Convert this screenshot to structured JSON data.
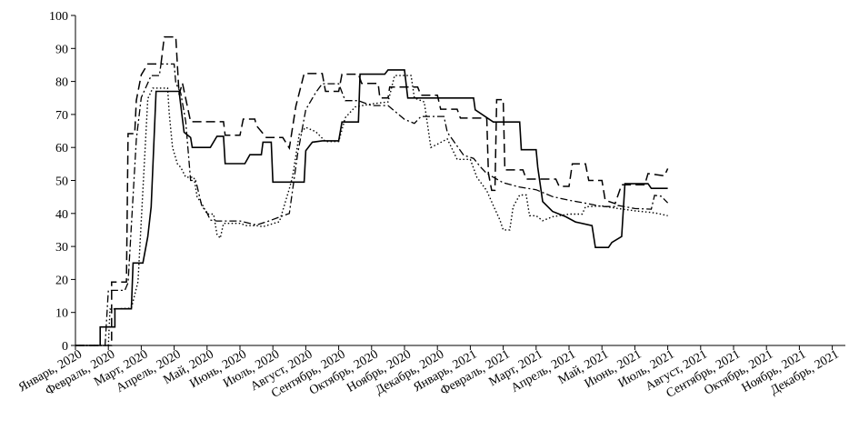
{
  "chart_data": {
    "type": "line",
    "title": "",
    "xlabel": "",
    "ylabel": "",
    "ylim": [
      0,
      100
    ],
    "yticks": [
      0,
      10,
      20,
      30,
      40,
      50,
      60,
      70,
      80,
      90,
      100
    ],
    "grid": false,
    "legend": "none",
    "x_categories": [
      "Январь, 2020",
      "Февраль, 2020",
      "Март, 2020",
      "Апрель, 2020",
      "Май, 2020",
      "Июнь, 2020",
      "Июль, 2020",
      "Август, 2020",
      "Сентябрь, 2020",
      "Октябрь, 2020",
      "Ноябрь, 2020",
      "Декабрь, 2020",
      "Январь, 2021",
      "Февраль, 2021",
      "Март, 2021",
      "Апрель, 2021",
      "Май, 2021",
      "Июнь, 2021",
      "Июль, 2021",
      "Август, 2021",
      "Сентябрь, 2021",
      "Октябрь, 2021",
      "Ноябрь, 2021",
      "Декабрь, 2021"
    ],
    "series": [
      {
        "style": "solid",
        "points": [
          [
            0,
            0
          ],
          [
            0.75,
            0
          ],
          [
            0.75,
            5.6
          ],
          [
            1.2,
            5.6
          ],
          [
            1.2,
            11.1
          ],
          [
            1.7,
            11.1
          ],
          [
            1.75,
            25
          ],
          [
            2.05,
            25
          ],
          [
            2.2,
            33
          ],
          [
            2.3,
            42
          ],
          [
            2.45,
            77
          ],
          [
            3.15,
            77
          ],
          [
            3.3,
            64.6
          ],
          [
            3.5,
            63
          ],
          [
            3.55,
            60
          ],
          [
            4.1,
            60
          ],
          [
            4.3,
            63.4
          ],
          [
            4.5,
            63.4
          ],
          [
            4.55,
            55.1
          ],
          [
            5.15,
            55.1
          ],
          [
            5.3,
            57.8
          ],
          [
            5.65,
            57.8
          ],
          [
            5.7,
            61.6
          ],
          [
            5.95,
            61.6
          ],
          [
            6.0,
            49.5
          ],
          [
            6.95,
            49.5
          ],
          [
            7.0,
            59
          ],
          [
            7.2,
            61.6
          ],
          [
            7.5,
            62
          ],
          [
            8.0,
            62
          ],
          [
            8.1,
            67.7
          ],
          [
            8.6,
            67.7
          ],
          [
            8.65,
            82.2
          ],
          [
            9.4,
            82.2
          ],
          [
            9.5,
            83.5
          ],
          [
            10.0,
            83.5
          ],
          [
            10.1,
            75
          ],
          [
            12.1,
            75
          ],
          [
            12.15,
            71.4
          ],
          [
            12.7,
            67.7
          ],
          [
            13.5,
            67.7
          ],
          [
            13.55,
            59.3
          ],
          [
            14.0,
            59.3
          ],
          [
            14.05,
            54
          ],
          [
            14.2,
            43.6
          ],
          [
            14.5,
            40.6
          ],
          [
            14.9,
            39
          ],
          [
            15.2,
            37.4
          ],
          [
            15.7,
            36.3
          ],
          [
            15.8,
            29.7
          ],
          [
            16.2,
            29.7
          ],
          [
            16.3,
            31.2
          ],
          [
            16.6,
            33
          ],
          [
            16.7,
            49
          ],
          [
            17.4,
            49
          ],
          [
            17.5,
            47.6
          ],
          [
            18.0,
            47.6
          ]
        ]
      },
      {
        "style": "long-dash",
        "points": [
          [
            0,
            0
          ],
          [
            1.1,
            0
          ],
          [
            1.1,
            19.2
          ],
          [
            1.55,
            19.2
          ],
          [
            1.6,
            64.2
          ],
          [
            1.8,
            64.2
          ],
          [
            1.85,
            74.3
          ],
          [
            2.0,
            82
          ],
          [
            2.2,
            85.3
          ],
          [
            2.6,
            85.3
          ],
          [
            2.7,
            93.5
          ],
          [
            3.05,
            93.5
          ],
          [
            3.15,
            76
          ],
          [
            3.25,
            79.5
          ],
          [
            3.5,
            67.8
          ],
          [
            4.5,
            67.8
          ],
          [
            4.55,
            63.7
          ],
          [
            5.0,
            63.7
          ],
          [
            5.1,
            68.6
          ],
          [
            5.45,
            68.6
          ],
          [
            5.5,
            66.6
          ],
          [
            5.8,
            63
          ],
          [
            6.3,
            63
          ],
          [
            6.5,
            59.8
          ],
          [
            6.7,
            72.5
          ],
          [
            6.95,
            82.4
          ],
          [
            7.5,
            82.4
          ],
          [
            7.6,
            77
          ],
          [
            8.0,
            77
          ],
          [
            8.1,
            82.2
          ],
          [
            8.6,
            82.2
          ],
          [
            8.7,
            79.4
          ],
          [
            9.2,
            79.4
          ],
          [
            9.25,
            75
          ],
          [
            9.5,
            75
          ],
          [
            9.55,
            78.3
          ],
          [
            10.4,
            78.3
          ],
          [
            10.5,
            75.8
          ],
          [
            11.0,
            75.8
          ],
          [
            11.1,
            71.6
          ],
          [
            11.6,
            71.6
          ],
          [
            11.7,
            68.9
          ],
          [
            12.5,
            68.9
          ],
          [
            12.55,
            52.2
          ],
          [
            12.65,
            47
          ],
          [
            12.75,
            47
          ],
          [
            12.8,
            74.5
          ],
          [
            13.0,
            74.5
          ],
          [
            13.05,
            53.2
          ],
          [
            13.6,
            53.2
          ],
          [
            13.7,
            50.4
          ],
          [
            14.6,
            50.4
          ],
          [
            14.7,
            48.2
          ],
          [
            15.0,
            48.2
          ],
          [
            15.1,
            55
          ],
          [
            15.5,
            55
          ],
          [
            15.6,
            50
          ],
          [
            16.0,
            50
          ],
          [
            16.1,
            44
          ],
          [
            16.4,
            43
          ],
          [
            16.6,
            48.7
          ],
          [
            17.3,
            48.7
          ],
          [
            17.4,
            52.1
          ],
          [
            17.9,
            51.4
          ],
          [
            18.0,
            53.6
          ]
        ]
      },
      {
        "style": "dash-dot",
        "points": [
          [
            0,
            0
          ],
          [
            0.9,
            0
          ],
          [
            1.0,
            16.7
          ],
          [
            1.5,
            16.7
          ],
          [
            1.6,
            19
          ],
          [
            1.85,
            62.5
          ],
          [
            2.0,
            75.1
          ],
          [
            2.3,
            81.8
          ],
          [
            2.55,
            81.8
          ],
          [
            2.6,
            85.3
          ],
          [
            3.0,
            85.3
          ],
          [
            3.05,
            79.5
          ],
          [
            3.2,
            76.5
          ],
          [
            3.35,
            67.9
          ],
          [
            3.5,
            50
          ],
          [
            3.65,
            50
          ],
          [
            3.7,
            48.2
          ],
          [
            3.85,
            41.8
          ],
          [
            3.95,
            41.2
          ],
          [
            4.1,
            38
          ],
          [
            4.3,
            37.7
          ],
          [
            5.0,
            37.7
          ],
          [
            5.5,
            36.5
          ],
          [
            5.9,
            37.8
          ],
          [
            6.5,
            40
          ],
          [
            6.75,
            58
          ],
          [
            7.0,
            71.5
          ],
          [
            7.3,
            76.6
          ],
          [
            7.5,
            79.3
          ],
          [
            8.0,
            79.3
          ],
          [
            8.2,
            74.2
          ],
          [
            8.6,
            74.2
          ],
          [
            8.7,
            73.8
          ],
          [
            9.0,
            72.7
          ],
          [
            9.5,
            72.7
          ],
          [
            10.0,
            68.5
          ],
          [
            10.3,
            67.3
          ],
          [
            10.5,
            69.4
          ],
          [
            11.2,
            69.4
          ],
          [
            11.3,
            64.6
          ],
          [
            11.8,
            57.6
          ],
          [
            12.1,
            56.7
          ],
          [
            12.3,
            54.2
          ],
          [
            12.5,
            52.1
          ],
          [
            13.0,
            49.3
          ],
          [
            13.5,
            48
          ],
          [
            14.0,
            47.2
          ],
          [
            14.5,
            45.1
          ],
          [
            15.0,
            44
          ],
          [
            15.5,
            43.1
          ],
          [
            16.0,
            42.1
          ],
          [
            16.4,
            42.1
          ],
          [
            16.5,
            42.4
          ],
          [
            17.0,
            41.5
          ],
          [
            17.5,
            41.3
          ],
          [
            17.6,
            45.5
          ],
          [
            17.8,
            45.2
          ],
          [
            18.0,
            43.2
          ]
        ]
      },
      {
        "style": "dotted",
        "points": [
          [
            0,
            0
          ],
          [
            1.0,
            0
          ],
          [
            1.05,
            11
          ],
          [
            1.7,
            11.3
          ],
          [
            1.9,
            19.3
          ],
          [
            2.05,
            47
          ],
          [
            2.2,
            74.8
          ],
          [
            2.35,
            78
          ],
          [
            2.8,
            78
          ],
          [
            2.85,
            70.2
          ],
          [
            2.95,
            60
          ],
          [
            3.1,
            55
          ],
          [
            3.2,
            54
          ],
          [
            3.35,
            51
          ],
          [
            3.6,
            51
          ],
          [
            3.7,
            45
          ],
          [
            3.85,
            42.8
          ],
          [
            4.0,
            39.8
          ],
          [
            4.2,
            39.8
          ],
          [
            4.3,
            33.7
          ],
          [
            4.4,
            32.5
          ],
          [
            4.5,
            37
          ],
          [
            5.0,
            37
          ],
          [
            5.2,
            36.3
          ],
          [
            5.5,
            36.3
          ],
          [
            5.7,
            36
          ],
          [
            6.2,
            37.5
          ],
          [
            6.5,
            47.5
          ],
          [
            6.6,
            51.2
          ],
          [
            6.8,
            64
          ],
          [
            7.0,
            66.1
          ],
          [
            7.3,
            64.8
          ],
          [
            7.6,
            61.8
          ],
          [
            8.0,
            61.8
          ],
          [
            8.2,
            69
          ],
          [
            8.5,
            72.3
          ],
          [
            9.0,
            73.2
          ],
          [
            9.5,
            73.8
          ],
          [
            9.7,
            81.8
          ],
          [
            10.2,
            81.8
          ],
          [
            10.3,
            75
          ],
          [
            10.6,
            73.8
          ],
          [
            10.8,
            60
          ],
          [
            11.0,
            61
          ],
          [
            11.3,
            62.6
          ],
          [
            11.6,
            56.4
          ],
          [
            12.0,
            56.4
          ],
          [
            12.2,
            51
          ],
          [
            12.5,
            46.9
          ],
          [
            12.7,
            42.4
          ],
          [
            12.9,
            38
          ],
          [
            13.0,
            35
          ],
          [
            13.2,
            35
          ],
          [
            13.3,
            42
          ],
          [
            13.5,
            45.6
          ],
          [
            13.7,
            45.6
          ],
          [
            13.8,
            39.3
          ],
          [
            14.0,
            39.3
          ],
          [
            14.2,
            37.8
          ],
          [
            14.5,
            39
          ],
          [
            15.0,
            39.8
          ],
          [
            15.4,
            39.8
          ],
          [
            15.5,
            42
          ],
          [
            16.0,
            42.3
          ],
          [
            16.5,
            41.5
          ],
          [
            17.0,
            40.8
          ],
          [
            17.5,
            40.3
          ],
          [
            17.7,
            40
          ],
          [
            18.0,
            39.3
          ]
        ]
      }
    ]
  }
}
